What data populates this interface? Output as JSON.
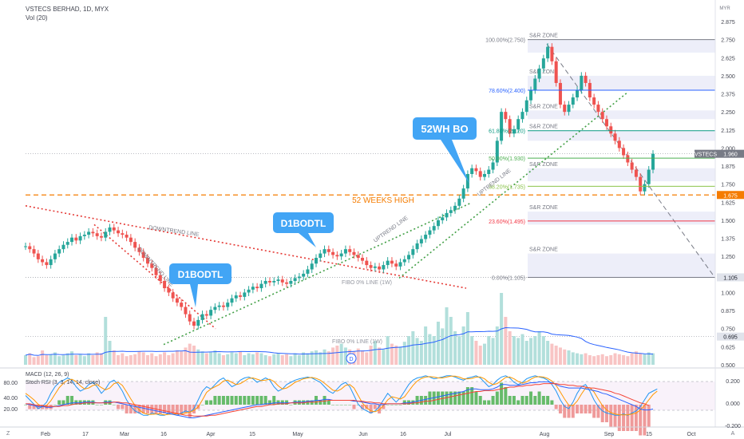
{
  "header": {
    "symbol_line": "VSTECS BERHAD, 1D, MYX",
    "volume_label": "Vol (20)",
    "currency": "MYR"
  },
  "price_axis": {
    "ticks": [
      "2.875",
      "2.750",
      "2.625",
      "2.500",
      "2.375",
      "2.250",
      "2.125",
      "2.000",
      "1.875",
      "1.750",
      "1.625",
      "1.500",
      "1.375",
      "1.250",
      "1.105",
      "1.000",
      "0.875",
      "0.750",
      "0.695",
      "0.625",
      "0.500"
    ],
    "tick_values": [
      2.875,
      2.75,
      2.625,
      2.5,
      2.375,
      2.25,
      2.125,
      2.0,
      1.875,
      1.75,
      1.625,
      1.5,
      1.375,
      1.25,
      1.105,
      1.0,
      0.875,
      0.75,
      0.695,
      0.625,
      0.5
    ],
    "range": [
      0.5,
      2.875
    ],
    "price_tag": {
      "label": "VSTECS",
      "value": "1.960",
      "price": 1.96
    },
    "hi52_tag": {
      "value": "1.675",
      "price": 1.675
    },
    "fibo0_tag": {
      "value": "1.105",
      "price": 1.105
    },
    "fibo1w_tag": {
      "value": "0.695",
      "price": 0.695
    }
  },
  "time_axis": {
    "labels": [
      "Feb",
      "17",
      "Mar",
      "16",
      "Apr",
      "15",
      "May",
      "Jun",
      "16",
      "Jul",
      "Aug",
      "Sep",
      "15",
      "Oct"
    ]
  },
  "fib": [
    {
      "label": "100.00%(2.750)",
      "price": 2.75,
      "color": "#787b86"
    },
    {
      "label": "78.60%(2.400)",
      "price": 2.4,
      "color": "#2962ff"
    },
    {
      "label": "61.80%(2.120)",
      "price": 2.12,
      "color": "#089981"
    },
    {
      "label": "50.00%(1.930)",
      "price": 1.93,
      "color": "#4caf50"
    },
    {
      "label": "38.20%(1.735)",
      "price": 1.735,
      "color": "#8bc34a"
    },
    {
      "label": "23.60%(1.495)",
      "price": 1.495,
      "color": "#f23645"
    },
    {
      "label": "0.00%(1.105)",
      "price": 1.105,
      "color": "#787b86"
    }
  ],
  "zones": [
    {
      "label": "S&R ZONE",
      "top": 2.75,
      "bottom": 2.66
    },
    {
      "label": "S&R ZONE",
      "top": 2.5,
      "bottom": 2.4
    },
    {
      "label": "S&R ZONE",
      "top": 2.26,
      "bottom": 2.2
    },
    {
      "label": "S&R ZONE",
      "top": 2.12,
      "bottom": 2.05
    },
    {
      "label": "S&R ZONE",
      "top": 1.86,
      "bottom": 1.77
    },
    {
      "label": "S&R ZONE",
      "top": 1.56,
      "bottom": 1.47
    },
    {
      "label": "S&R ZONE",
      "top": 1.27,
      "bottom": 1.105
    }
  ],
  "annotations": {
    "hi52": "52 WEEKS HIGH",
    "downtrend": "DOWNTREND LINE",
    "downtrend2": "DOWNTREND LINE",
    "uptrend": "UPTREND LINE",
    "uptrend2": "UPTREND LINE",
    "fibo_1w": "FIBO 0% LINE (1W)",
    "fibo_1w_b": "FIBO 0% LINE (1W)",
    "callouts": [
      "D1BODTL",
      "D1BODTL",
      "52WH BO"
    ]
  },
  "indicators": {
    "macd_label": "MACD (12, 26, 9)",
    "stoch_label": "Stoch RSI (3, 3, 14, 14, close)",
    "left_ticks": [
      "80.00",
      "40.00",
      "20.00"
    ],
    "right_ticks": [
      "0.200",
      "0.000",
      "-0.200"
    ]
  },
  "colors": {
    "up": "#26a69a",
    "down": "#ef5350",
    "accent": "#2962ff",
    "hi52": "#f57c00",
    "callout": "#42a5f5"
  },
  "chart_data": {
    "type": "candlestick",
    "x_labels": [
      "Feb",
      "17",
      "Mar",
      "16",
      "Apr",
      "15",
      "May",
      "Jun",
      "16",
      "Jul",
      "Aug",
      "Sep",
      "15",
      "Oct"
    ],
    "y_range": [
      0.5,
      2.875
    ],
    "last_price": 1.96,
    "hi52_weeks": 1.675,
    "closes": [
      1.32,
      1.3,
      1.27,
      1.23,
      1.21,
      1.19,
      1.23,
      1.27,
      1.3,
      1.33,
      1.35,
      1.38,
      1.36,
      1.39,
      1.4,
      1.42,
      1.41,
      1.39,
      1.38,
      1.42,
      1.45,
      1.43,
      1.41,
      1.4,
      1.38,
      1.35,
      1.31,
      1.28,
      1.24,
      1.2,
      1.17,
      1.12,
      1.08,
      1.03,
      1.0,
      0.96,
      0.93,
      0.9,
      0.85,
      0.8,
      0.77,
      0.81,
      0.85,
      0.84,
      0.88,
      0.9,
      0.91,
      0.9,
      0.93,
      0.96,
      0.98,
      0.97,
      1.0,
      1.02,
      1.04,
      1.03,
      1.06,
      1.08,
      1.07,
      1.08,
      1.09,
      1.07,
      1.06,
      1.08,
      1.1,
      1.11,
      1.13,
      1.16,
      1.2,
      1.24,
      1.27,
      1.3,
      1.28,
      1.26,
      1.25,
      1.27,
      1.3,
      1.28,
      1.26,
      1.24,
      1.22,
      1.19,
      1.17,
      1.18,
      1.16,
      1.19,
      1.22,
      1.2,
      1.18,
      1.21,
      1.23,
      1.26,
      1.3,
      1.34,
      1.37,
      1.4,
      1.43,
      1.46,
      1.5,
      1.52,
      1.55,
      1.57,
      1.6,
      1.65,
      1.72,
      1.82,
      1.86,
      1.84,
      1.8,
      1.82,
      1.85,
      1.9,
      2.05,
      2.25,
      2.2,
      2.1,
      2.13,
      2.2,
      2.25,
      2.33,
      2.4,
      2.48,
      2.55,
      2.62,
      2.7,
      2.6,
      2.45,
      2.3,
      2.25,
      2.3,
      2.35,
      2.4,
      2.5,
      2.45,
      2.35,
      2.3,
      2.25,
      2.2,
      2.15,
      2.1,
      2.05,
      2.0,
      1.95,
      1.9,
      1.85,
      1.8,
      1.7,
      1.75,
      1.85,
      1.96
    ],
    "volume_range": [
      0,
      1
    ],
    "volume": [
      0.1,
      0.12,
      0.08,
      0.09,
      0.15,
      0.1,
      0.11,
      0.13,
      0.09,
      0.1,
      0.12,
      0.14,
      0.1,
      0.11,
      0.09,
      0.12,
      0.1,
      0.13,
      0.12,
      0.5,
      0.25,
      0.15,
      0.1,
      0.12,
      0.09,
      0.1,
      0.11,
      0.14,
      0.13,
      0.1,
      0.12,
      0.09,
      0.11,
      0.13,
      0.1,
      0.12,
      0.15,
      0.14,
      0.18,
      0.22,
      0.2,
      0.16,
      0.14,
      0.12,
      0.13,
      0.15,
      0.12,
      0.1,
      0.11,
      0.13,
      0.12,
      0.14,
      0.1,
      0.12,
      0.11,
      0.13,
      0.12,
      0.1,
      0.09,
      0.11,
      0.12,
      0.1,
      0.11,
      0.09,
      0.12,
      0.1,
      0.13,
      0.12,
      0.14,
      0.15,
      0.13,
      0.16,
      0.14,
      0.18,
      0.2,
      0.22,
      0.18,
      0.16,
      0.14,
      0.17,
      0.15,
      0.13,
      0.2,
      0.25,
      0.18,
      0.16,
      0.3,
      0.22,
      0.2,
      0.19,
      0.24,
      0.3,
      0.35,
      0.28,
      0.25,
      0.4,
      0.32,
      0.3,
      0.45,
      0.38,
      0.6,
      0.5,
      0.35,
      0.3,
      0.4,
      0.55,
      0.3,
      0.25,
      0.2,
      0.22,
      0.3,
      0.28,
      0.4,
      0.75,
      0.5,
      0.35,
      0.3,
      0.28,
      0.32,
      0.25,
      0.28,
      0.3,
      0.35,
      0.3,
      0.25,
      0.22,
      0.2,
      0.18,
      0.16,
      0.15,
      0.13,
      0.12,
      0.11,
      0.12,
      0.1,
      0.09,
      0.1,
      0.11,
      0.09,
      0.1,
      0.12,
      0.11,
      0.1,
      0.09,
      0.12,
      0.14,
      0.12,
      0.11,
      0.13,
      0.12
    ],
    "macd_range": [
      -0.26,
      0.26
    ],
    "macd_line": [
      0.01,
      0.0,
      -0.01,
      -0.02,
      -0.02,
      -0.03,
      -0.03,
      -0.02,
      -0.01,
      0.0,
      0.01,
      0.02,
      0.02,
      0.02,
      0.03,
      0.03,
      0.03,
      0.02,
      0.02,
      0.03,
      0.03,
      0.03,
      0.02,
      0.01,
      0.0,
      -0.01,
      -0.02,
      -0.03,
      -0.04,
      -0.05,
      -0.06,
      -0.07,
      -0.08,
      -0.09,
      -0.1,
      -0.11,
      -0.12,
      -0.13,
      -0.14,
      -0.15,
      -0.15,
      -0.14,
      -0.13,
      -0.12,
      -0.11,
      -0.1,
      -0.09,
      -0.08,
      -0.07,
      -0.06,
      -0.05,
      -0.04,
      -0.03,
      -0.02,
      -0.01,
      0.0,
      0.0,
      0.01,
      0.01,
      0.02,
      0.02,
      0.02,
      0.02,
      0.02,
      0.03,
      0.03,
      0.03,
      0.04,
      0.04,
      0.05,
      0.05,
      0.06,
      0.06,
      0.05,
      0.05,
      0.05,
      0.05,
      0.05,
      0.04,
      0.04,
      0.03,
      0.02,
      0.01,
      0.01,
      0.0,
      0.0,
      0.01,
      0.01,
      0.01,
      0.01,
      0.02,
      0.02,
      0.03,
      0.04,
      0.05,
      0.06,
      0.07,
      0.08,
      0.09,
      0.1,
      0.11,
      0.12,
      0.13,
      0.14,
      0.15,
      0.17,
      0.18,
      0.18,
      0.17,
      0.17,
      0.17,
      0.18,
      0.2,
      0.23,
      0.23,
      0.22,
      0.22,
      0.22,
      0.23,
      0.24,
      0.25,
      0.25,
      0.26,
      0.26,
      0.26,
      0.25,
      0.23,
      0.21,
      0.2,
      0.19,
      0.19,
      0.19,
      0.19,
      0.18,
      0.17,
      0.16,
      0.15,
      0.13,
      0.12,
      0.1,
      0.08,
      0.06,
      0.04,
      0.02,
      0.0,
      -0.02,
      -0.05,
      -0.06,
      -0.06,
      -0.05
    ],
    "macd_signal": [
      0.01,
      0.01,
      0.0,
      -0.01,
      -0.01,
      -0.02,
      -0.02,
      -0.02,
      -0.02,
      -0.01,
      -0.01,
      0.0,
      0.01,
      0.01,
      0.02,
      0.02,
      0.02,
      0.02,
      0.02,
      0.02,
      0.02,
      0.03,
      0.03,
      0.02,
      0.02,
      0.01,
      0.0,
      -0.01,
      -0.02,
      -0.03,
      -0.04,
      -0.05,
      -0.06,
      -0.07,
      -0.08,
      -0.09,
      -0.1,
      -0.11,
      -0.12,
      -0.12,
      -0.13,
      -0.13,
      -0.13,
      -0.13,
      -0.12,
      -0.12,
      -0.11,
      -0.1,
      -0.09,
      -0.08,
      -0.07,
      -0.06,
      -0.05,
      -0.04,
      -0.03,
      -0.02,
      -0.02,
      -0.01,
      0.0,
      0.0,
      0.01,
      0.01,
      0.01,
      0.02,
      0.02,
      0.02,
      0.02,
      0.03,
      0.03,
      0.03,
      0.04,
      0.04,
      0.05,
      0.05,
      0.05,
      0.05,
      0.05,
      0.05,
      0.05,
      0.04,
      0.04,
      0.03,
      0.03,
      0.02,
      0.02,
      0.01,
      0.01,
      0.01,
      0.01,
      0.01,
      0.01,
      0.01,
      0.02,
      0.02,
      0.03,
      0.04,
      0.04,
      0.05,
      0.06,
      0.07,
      0.08,
      0.09,
      0.1,
      0.11,
      0.12,
      0.13,
      0.14,
      0.15,
      0.15,
      0.16,
      0.16,
      0.16,
      0.17,
      0.18,
      0.19,
      0.2,
      0.2,
      0.21,
      0.21,
      0.22,
      0.22,
      0.23,
      0.23,
      0.24,
      0.24,
      0.24,
      0.24,
      0.23,
      0.23,
      0.22,
      0.22,
      0.21,
      0.21,
      0.2,
      0.19,
      0.19,
      0.18,
      0.17,
      0.16,
      0.15,
      0.13,
      0.12,
      0.1,
      0.08,
      0.06,
      0.04,
      0.02,
      0.01,
      -0.01
    ],
    "stoch_range": [
      0,
      100
    ],
    "stoch_k": [
      50,
      40,
      30,
      20,
      25,
      35,
      55,
      70,
      80,
      85,
      90,
      85,
      70,
      60,
      65,
      75,
      80,
      70,
      55,
      65,
      80,
      85,
      75,
      60,
      40,
      25,
      15,
      10,
      5,
      5,
      10,
      8,
      5,
      5,
      10,
      8,
      5,
      10,
      15,
      12,
      20,
      40,
      60,
      70,
      65,
      75,
      85,
      90,
      80,
      70,
      75,
      85,
      90,
      92,
      88,
      80,
      85,
      90,
      85,
      70,
      60,
      65,
      75,
      80,
      85,
      88,
      90,
      92,
      90,
      85,
      80,
      70,
      60,
      55,
      65,
      75,
      80,
      70,
      50,
      30,
      20,
      15,
      10,
      15,
      25,
      40,
      55,
      45,
      35,
      45,
      60,
      75,
      85,
      90,
      92,
      95,
      92,
      88,
      90,
      92,
      95,
      95,
      92,
      88,
      85,
      90,
      92,
      95,
      90,
      80,
      70,
      75,
      85,
      92,
      95,
      90,
      80,
      75,
      80,
      88,
      92,
      95,
      92,
      90,
      85,
      75,
      60,
      40,
      25,
      20,
      35,
      55,
      70,
      75,
      60,
      40,
      25,
      15,
      10,
      8,
      5,
      5,
      8,
      5,
      10,
      15,
      25,
      40,
      55,
      60,
      65
    ],
    "stoch_d": [
      55,
      48,
      40,
      30,
      25,
      27,
      38,
      53,
      68,
      78,
      85,
      87,
      82,
      72,
      65,
      67,
      73,
      75,
      68,
      63,
      67,
      77,
      80,
      73,
      58,
      42,
      27,
      17,
      10,
      7,
      7,
      8,
      8,
      6,
      7,
      8,
      8,
      8,
      10,
      12,
      16,
      24,
      40,
      57,
      65,
      70,
      75,
      83,
      85,
      80,
      75,
      77,
      83,
      89,
      90,
      87,
      84,
      85,
      87,
      82,
      72,
      65,
      67,
      73,
      80,
      84,
      88,
      90,
      91,
      89,
      85,
      78,
      70,
      62,
      60,
      65,
      73,
      75,
      67,
      50,
      33,
      22,
      15,
      13,
      17,
      27,
      40,
      47,
      45,
      42,
      47,
      60,
      73,
      83,
      89,
      92,
      93,
      92,
      90,
      90,
      92,
      94,
      94,
      92,
      88,
      88,
      89,
      92,
      92,
      88,
      80,
      75,
      77,
      84,
      91,
      92,
      88,
      82,
      78,
      81,
      87,
      92,
      93,
      92,
      89,
      83,
      73,
      58,
      42,
      28,
      27,
      37,
      53,
      67,
      68,
      58,
      42,
      27,
      17,
      11,
      8,
      6,
      6,
      6,
      8,
      10,
      17,
      27,
      40,
      52,
      60
    ]
  }
}
